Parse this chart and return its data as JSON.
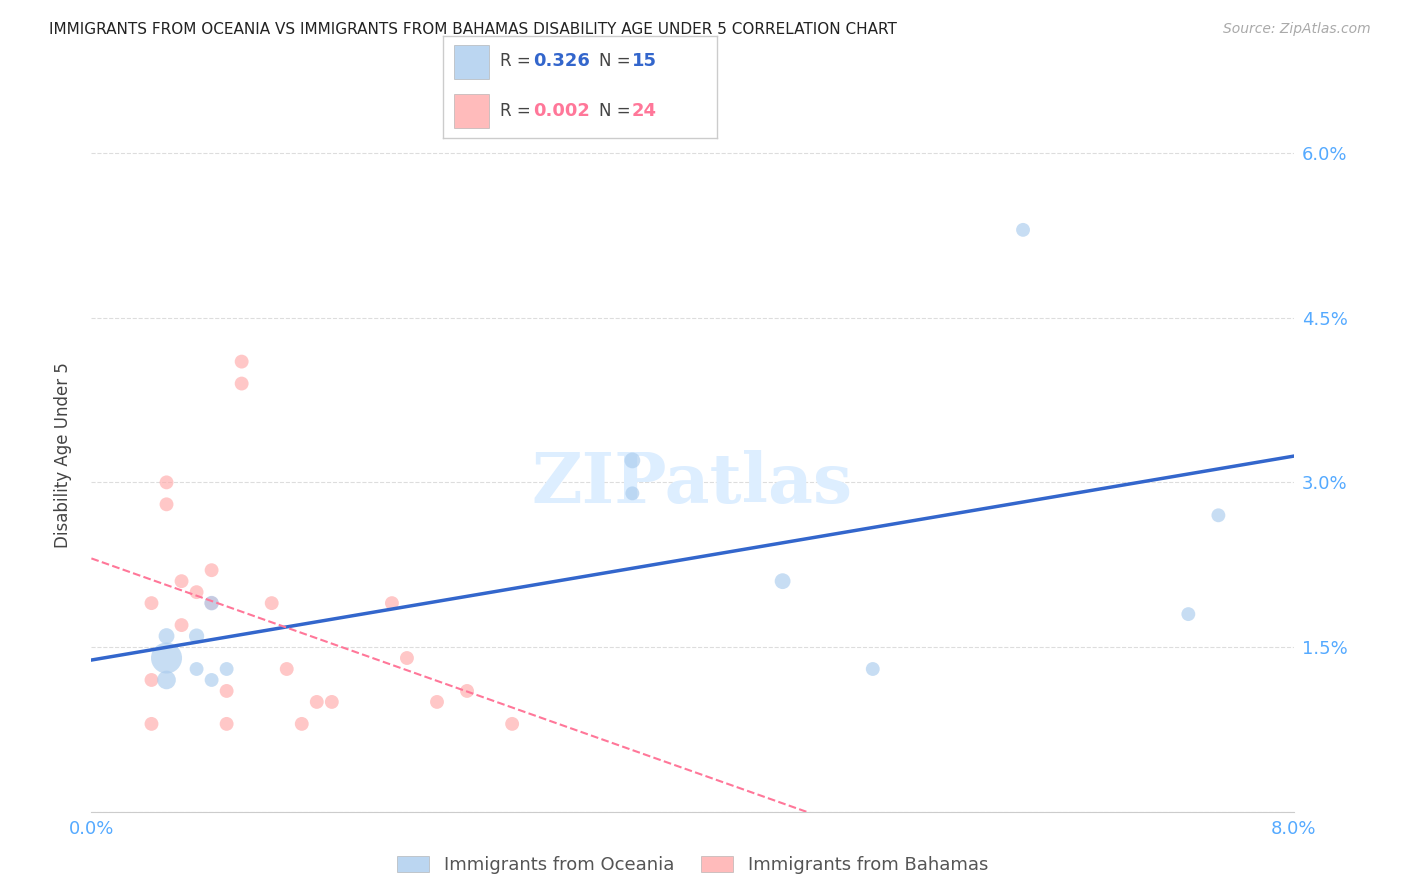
{
  "title": "IMMIGRANTS FROM OCEANIA VS IMMIGRANTS FROM BAHAMAS DISABILITY AGE UNDER 5 CORRELATION CHART",
  "source": "Source: ZipAtlas.com",
  "ylabel": "Disability Age Under 5",
  "xlim": [
    0.0,
    0.08
  ],
  "ylim": [
    0.0,
    0.065
  ],
  "blue_color": "#AACCEE",
  "pink_color": "#FFAAAA",
  "blue_line_color": "#3366CC",
  "pink_line_color": "#FF7799",
  "axis_color": "#55AAFF",
  "grid_color": "#DDDDDD",
  "oceania_x": [
    0.005,
    0.005,
    0.005,
    0.007,
    0.007,
    0.008,
    0.008,
    0.009,
    0.036,
    0.036,
    0.046,
    0.052,
    0.062,
    0.073,
    0.075
  ],
  "oceania_y": [
    0.014,
    0.012,
    0.016,
    0.016,
    0.013,
    0.019,
    0.012,
    0.013,
    0.032,
    0.029,
    0.021,
    0.013,
    0.053,
    0.018,
    0.027
  ],
  "oceania_sizes": [
    500,
    180,
    130,
    120,
    100,
    110,
    100,
    100,
    130,
    100,
    130,
    100,
    100,
    100,
    100
  ],
  "bahamas_x": [
    0.004,
    0.004,
    0.004,
    0.005,
    0.005,
    0.006,
    0.006,
    0.007,
    0.008,
    0.008,
    0.009,
    0.009,
    0.01,
    0.01,
    0.012,
    0.013,
    0.014,
    0.015,
    0.016,
    0.02,
    0.021,
    0.023,
    0.025,
    0.028
  ],
  "bahamas_y": [
    0.008,
    0.012,
    0.019,
    0.028,
    0.03,
    0.017,
    0.021,
    0.02,
    0.019,
    0.022,
    0.008,
    0.011,
    0.041,
    0.039,
    0.019,
    0.013,
    0.008,
    0.01,
    0.01,
    0.019,
    0.014,
    0.01,
    0.011,
    0.008
  ],
  "bahamas_sizes": [
    100,
    100,
    100,
    100,
    100,
    100,
    100,
    100,
    100,
    100,
    100,
    100,
    100,
    100,
    100,
    100,
    100,
    100,
    100,
    100,
    100,
    100,
    100,
    100
  ],
  "ytick_positions": [
    0.0,
    0.015,
    0.03,
    0.045,
    0.06
  ],
  "ytick_labels": [
    "",
    "1.5%",
    "3.0%",
    "4.5%",
    "6.0%"
  ],
  "xtick_positions": [
    0.0,
    0.01,
    0.02,
    0.03,
    0.04,
    0.05,
    0.06,
    0.07,
    0.08
  ],
  "xtick_labels": [
    "0.0%",
    "",
    "",
    "",
    "",
    "",
    "",
    "",
    "8.0%"
  ]
}
